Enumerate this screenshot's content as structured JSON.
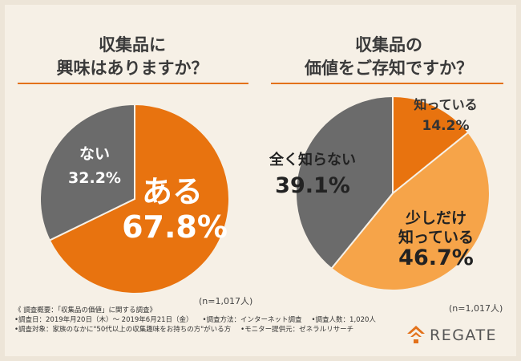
{
  "left_title": [
    "収集品に",
    "興味はありますか？"
  ],
  "right_title": [
    "収集品の",
    "価値をご存知ですか？"
  ],
  "colors": {
    "orange": "#e8730f",
    "light_orange": "#f6a449",
    "gray": "#6b6b6b",
    "accent": "#e3711a"
  },
  "chart_data": [
    {
      "type": "pie",
      "title": "収集品に興味はありますか？",
      "slices": [
        {
          "label": "ある",
          "value": 67.8,
          "display": "67.8%",
          "color": "#e8730f"
        },
        {
          "label": "ない",
          "value": 32.2,
          "display": "32.2%",
          "color": "#6b6b6b"
        }
      ],
      "note": "(n=1,017人)"
    },
    {
      "type": "pie",
      "title": "収集品の価値をご存知ですか？",
      "slices": [
        {
          "label": "知っている",
          "value": 14.2,
          "display": "14.2%",
          "color": "#e8730f"
        },
        {
          "label": "少しだけ知っている",
          "value": 46.7,
          "display": "46.7%",
          "color": "#f6a449"
        },
        {
          "label": "全く知らない",
          "value": 39.1,
          "display": "39.1%",
          "color": "#6b6b6b"
        }
      ],
      "note": "(n=1,017人)"
    }
  ],
  "survey": {
    "heading": "《 調査概要：「収集品の価値」に関する調査》",
    "date": "•調査日：2019年月20日（木）～ 2019年6月21日（金）",
    "method": "•調査方法：インターネット調査",
    "count": "•調査人数：1,020人",
    "target": "•調査対象：家族のなかに\"50代以上の収集趣味をお持ちの方\"がいる方",
    "provider": "•モニター提供元：ゼネラルリサーチ"
  },
  "logo_text": "REGATE"
}
